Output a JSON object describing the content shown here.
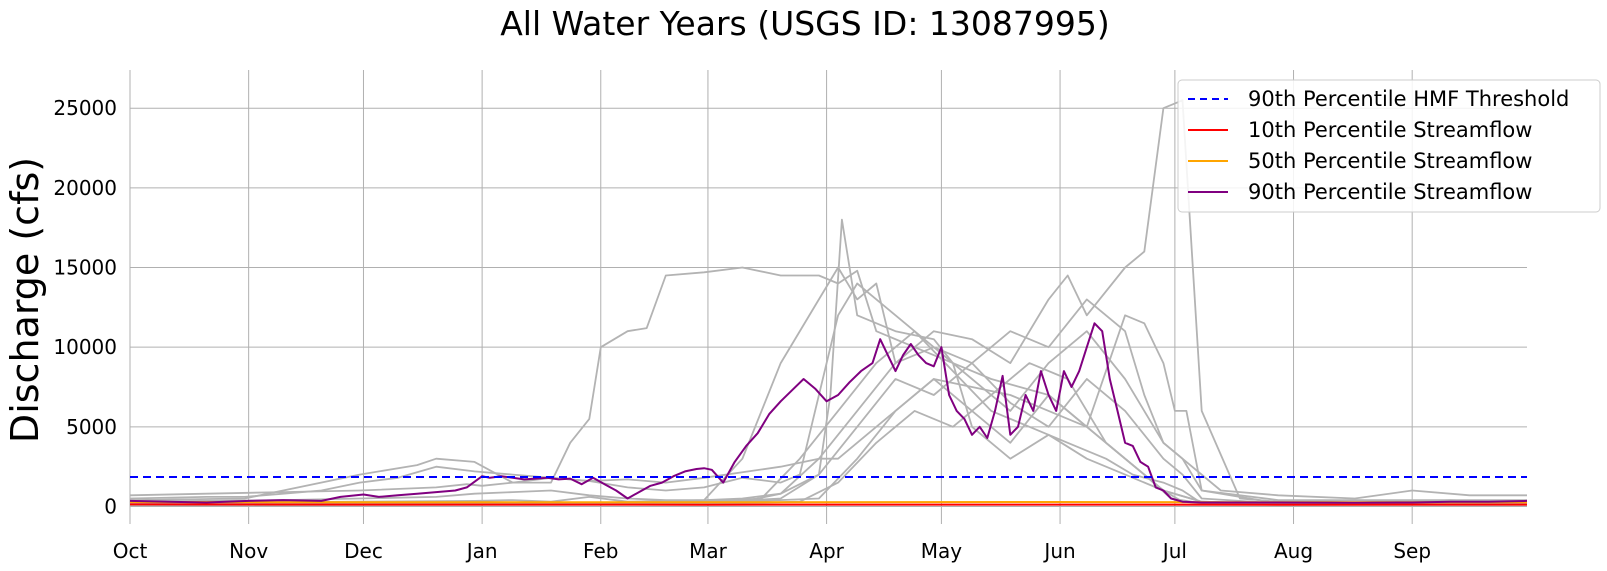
{
  "chart_data": {
    "type": "line",
    "title": "All Water Years (USGS ID: 13087995)",
    "xlabel": "",
    "ylabel": "Discharge (cfs)",
    "x_ticks": [
      "Oct",
      "Nov",
      "Dec",
      "Jan",
      "Feb",
      "Mar",
      "Apr",
      "May",
      "Jun",
      "Jul",
      "Aug",
      "Sep"
    ],
    "x_tick_days": [
      0,
      31,
      61,
      92,
      123,
      151,
      182,
      212,
      243,
      273,
      304,
      335
    ],
    "x_range_days": [
      0,
      365
    ],
    "y_ticks": [
      0,
      5000,
      10000,
      15000,
      20000,
      25000
    ],
    "ylim": [
      -1100,
      27400
    ],
    "grid": true,
    "legend_position": "top-right",
    "legend": [
      {
        "label": "90th Percentile HMF Threshold",
        "color": "#0000ff",
        "style": "dashed"
      },
      {
        "label": "10th Percentile Streamflow",
        "color": "#ff0000",
        "style": "solid"
      },
      {
        "label": "50th Percentile Streamflow",
        "color": "#ffa500",
        "style": "solid"
      },
      {
        "label": "90th Percentile Streamflow",
        "color": "#800080",
        "style": "solid"
      }
    ],
    "hmf_threshold": 1850,
    "percentile_10": {
      "color": "#ff0000",
      "x": [
        0,
        60,
        150,
        240,
        300,
        365
      ],
      "y": [
        130,
        120,
        110,
        120,
        110,
        120
      ]
    },
    "percentile_50": {
      "color": "#ffa500",
      "x": [
        0,
        60,
        150,
        240,
        300,
        365
      ],
      "y": [
        280,
        270,
        260,
        280,
        260,
        270
      ]
    },
    "percentile_90": {
      "color": "#800080",
      "x": [
        0,
        10,
        20,
        25,
        31,
        40,
        50,
        55,
        61,
        65,
        70,
        75,
        80,
        85,
        88,
        92,
        94,
        97,
        100,
        103,
        106,
        109,
        112,
        115,
        118,
        121,
        124,
        127,
        130,
        133,
        136,
        139,
        142,
        145,
        148,
        150,
        152,
        155,
        158,
        161,
        164,
        167,
        170,
        173,
        176,
        179,
        182,
        185,
        188,
        191,
        194,
        196,
        198,
        200,
        202,
        204,
        206,
        208,
        210,
        212,
        214,
        216,
        218,
        220,
        222,
        224,
        226,
        228,
        230,
        232,
        234,
        236,
        238,
        240,
        242,
        244,
        246,
        248,
        250,
        252,
        254,
        256,
        258,
        260,
        262,
        264,
        266,
        268,
        270,
        272,
        275,
        280,
        300,
        320,
        335,
        345,
        355,
        365
      ],
      "y": [
        350,
        300,
        250,
        300,
        350,
        400,
        350,
        600,
        750,
        600,
        700,
        800,
        900,
        1000,
        1200,
        1900,
        1800,
        1900,
        1800,
        1700,
        1750,
        1800,
        1700,
        1750,
        1400,
        1800,
        1400,
        1000,
        500,
        900,
        1300,
        1500,
        1900,
        2200,
        2350,
        2400,
        2300,
        1500,
        2800,
        3800,
        4600,
        5800,
        6600,
        7300,
        8000,
        7400,
        6600,
        7000,
        7800,
        8500,
        9000,
        10500,
        9500,
        8500,
        9500,
        10200,
        9500,
        9000,
        8800,
        10000,
        7000,
        6000,
        5500,
        4500,
        5000,
        4300,
        6000,
        8200,
        4500,
        5000,
        7000,
        6000,
        8500,
        7000,
        6000,
        8500,
        7500,
        8500,
        10000,
        11500,
        11000,
        8000,
        6000,
        4000,
        3800,
        2800,
        2500,
        1200,
        1000,
        500,
        300,
        250,
        250,
        240,
        250,
        300,
        300,
        350
      ]
    },
    "water_years": [
      {
        "x": [
          0,
          20,
          40,
          60,
          80,
          88,
          92,
          100,
          110,
          120,
          130,
          140,
          150,
          170,
          180,
          185,
          195,
          210,
          230,
          240,
          250,
          260,
          265,
          268,
          270,
          273,
          276,
          280,
          300,
          365
        ],
        "y": [
          700,
          800,
          900,
          1000,
          1200,
          1400,
          1300,
          1500,
          1800,
          1600,
          1700,
          1500,
          1800,
          2500,
          3000,
          3000,
          5000,
          8000,
          7000,
          6000,
          5000,
          12000,
          11500,
          10000,
          9000,
          6000,
          6000,
          1000,
          400,
          400
        ]
      },
      {
        "x": [
          0,
          30,
          60,
          90,
          100,
          110,
          120,
          130,
          150,
          160,
          170,
          180,
          185,
          190,
          195,
          200,
          210,
          220,
          230,
          240,
          245,
          250,
          260,
          265,
          270,
          275,
          280,
          290,
          300,
          320,
          335,
          345,
          355,
          365
        ],
        "y": [
          200,
          250,
          300,
          350,
          400,
          300,
          600,
          300,
          400,
          3000,
          9000,
          13000,
          15000,
          13000,
          14000,
          9000,
          11000,
          10500,
          9000,
          13000,
          14500,
          12000,
          15000,
          16000,
          25000,
          25500,
          6000,
          500,
          300,
          400,
          300,
          400,
          300,
          300
        ]
      },
      {
        "x": [
          0,
          30,
          60,
          75,
          80,
          90,
          100,
          110,
          115,
          120,
          123,
          130,
          135,
          140,
          150,
          160,
          170,
          180,
          185,
          190,
          195,
          205,
          215,
          225,
          240,
          250,
          260,
          270,
          275,
          280,
          300,
          365
        ],
        "y": [
          400,
          500,
          2000,
          2600,
          3000,
          2800,
          1500,
          1500,
          4000,
          5500,
          10000,
          11000,
          11200,
          14500,
          14700,
          15000,
          14500,
          14500,
          14000,
          14800,
          11000,
          10000,
          9000,
          8000,
          7000,
          5000,
          3000,
          1000,
          300,
          200,
          200,
          200
        ]
      },
      {
        "x": [
          0,
          20,
          30,
          40,
          50,
          60,
          70,
          80,
          90,
          100,
          110,
          120,
          130,
          140,
          150,
          160,
          170,
          175,
          185,
          190,
          200,
          210,
          220,
          230,
          240,
          250,
          260,
          270,
          275,
          285,
          300,
          320,
          335,
          350,
          365
        ],
        "y": [
          500,
          600,
          600,
          800,
          1000,
          1500,
          1800,
          2500,
          2200,
          2000,
          1800,
          1600,
          1200,
          1000,
          1200,
          1800,
          1500,
          2000,
          12000,
          14000,
          12000,
          10000,
          8000,
          6000,
          9000,
          11000,
          8000,
          4000,
          3000,
          1000,
          700,
          500,
          1000,
          700,
          700
        ]
      },
      {
        "x": [
          0,
          20,
          40,
          60,
          80,
          90,
          100,
          110,
          120,
          130,
          140,
          150,
          160,
          170,
          180,
          183,
          186,
          190,
          200,
          210,
          215,
          220,
          230,
          240,
          250,
          260,
          270,
          280,
          300,
          365
        ],
        "y": [
          300,
          350,
          400,
          500,
          600,
          800,
          900,
          1000,
          700,
          500,
          400,
          400,
          500,
          800,
          2000,
          7000,
          18000,
          12000,
          11000,
          10500,
          9000,
          5000,
          3000,
          4500,
          3000,
          2000,
          1000,
          300,
          200,
          200
        ]
      },
      {
        "x": [
          0,
          30,
          60,
          90,
          120,
          150,
          165,
          175,
          185,
          195,
          205,
          215,
          225,
          235,
          245,
          255,
          262,
          270,
          275,
          280,
          300,
          365
        ],
        "y": [
          100,
          150,
          200,
          250,
          250,
          300,
          500,
          3000,
          6000,
          9000,
          11000,
          8500,
          6000,
          5000,
          4000,
          3000,
          2000,
          1500,
          1000,
          200,
          150,
          150
        ]
      },
      {
        "x": [
          0,
          60,
          120,
          150,
          160,
          170,
          180,
          190,
          200,
          210,
          220,
          230,
          240,
          250,
          260,
          265,
          270,
          275,
          280,
          300,
          365
        ],
        "y": [
          150,
          200,
          200,
          250,
          300,
          800,
          3000,
          6000,
          9000,
          10000,
          9000,
          11000,
          10000,
          13000,
          11000,
          7000,
          4000,
          3000,
          1000,
          200,
          200
        ]
      },
      {
        "x": [
          0,
          60,
          90,
          120,
          150,
          170,
          180,
          190,
          200,
          210,
          220,
          230,
          240,
          250,
          260,
          270,
          275,
          280,
          300,
          365
        ],
        "y": [
          120,
          150,
          200,
          200,
          250,
          500,
          2000,
          5000,
          8000,
          7000,
          9000,
          6500,
          5000,
          8000,
          6000,
          3000,
          2000,
          500,
          200,
          200
        ]
      },
      {
        "x": [
          0,
          60,
          120,
          150,
          180,
          190,
          200,
          210,
          220,
          230,
          240,
          250,
          260,
          270,
          280,
          300,
          365
        ],
        "y": [
          100,
          120,
          150,
          200,
          500,
          3000,
          6000,
          8000,
          6000,
          4000,
          7000,
          5000,
          3000,
          1000,
          300,
          150,
          150
        ]
      },
      {
        "x": [
          0,
          60,
          120,
          150,
          175,
          185,
          195,
          205,
          215,
          225,
          235,
          245,
          255,
          265,
          272,
          280,
          300,
          365
        ],
        "y": [
          80,
          100,
          120,
          150,
          300,
          1500,
          4000,
          6000,
          5000,
          7000,
          9000,
          8000,
          4000,
          2000,
          500,
          200,
          100,
          100
        ]
      }
    ]
  }
}
